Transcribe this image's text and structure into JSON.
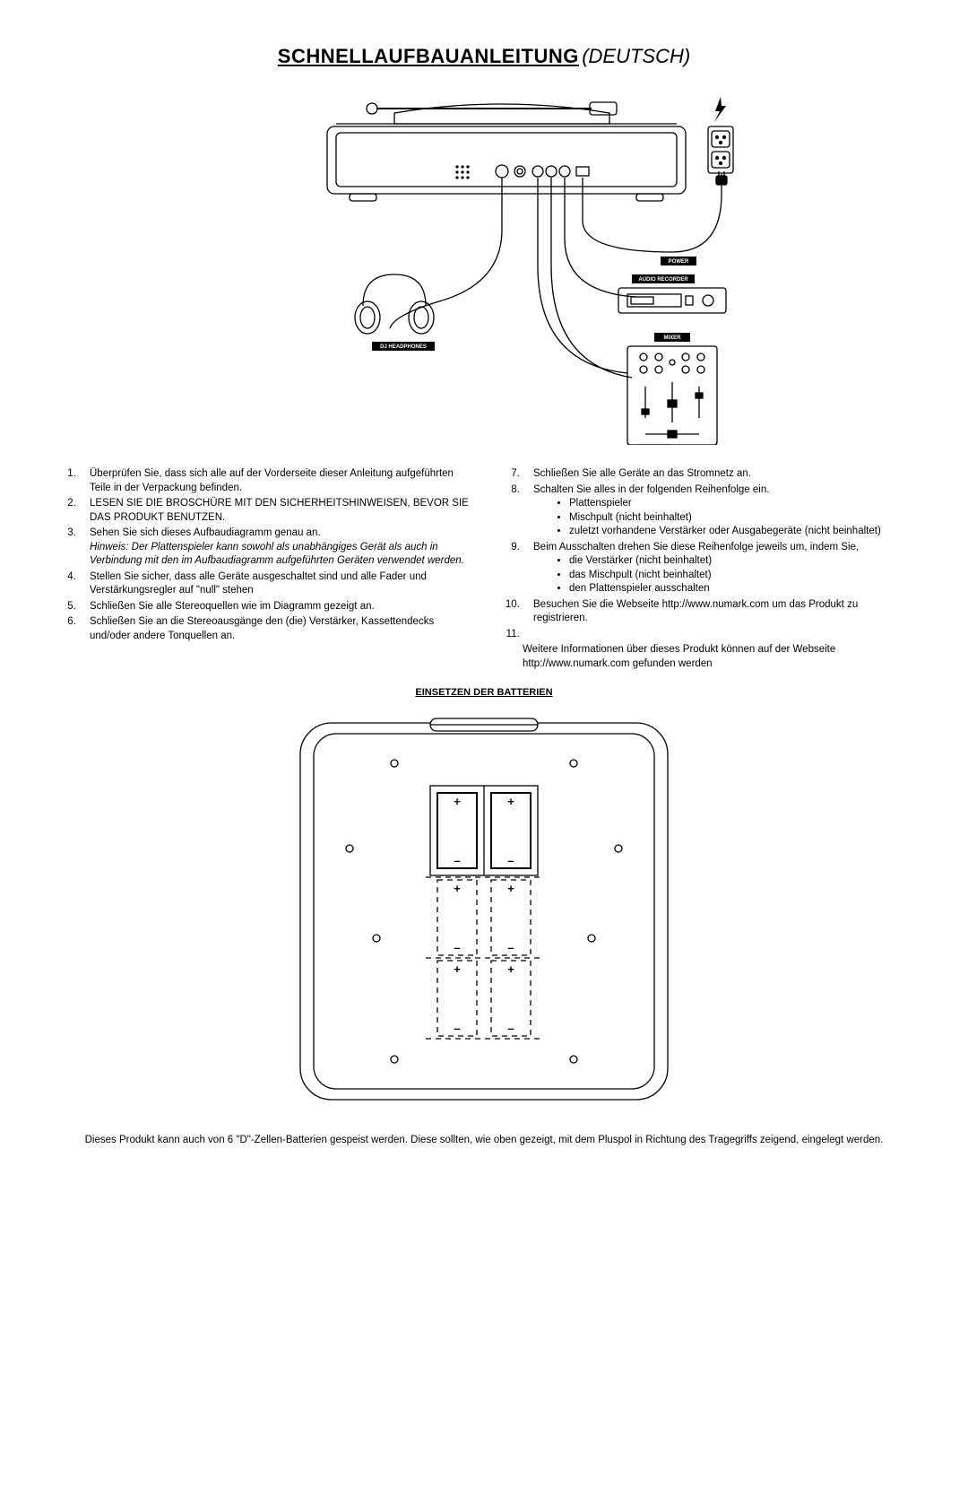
{
  "title": {
    "main": "SCHNELLAUFBAUANLEITUNG",
    "lang": "(DEUTSCH)"
  },
  "diagram_labels": {
    "power": "POWER",
    "audio_recorder": "AUDIO RECORDER",
    "mixer": "MIXER",
    "dj_headphones": "DJ HEADPHONES"
  },
  "left_list": [
    {
      "n": "1.",
      "text": "Überprüfen Sie, dass sich alle auf der Vorderseite dieser Anleitung aufgeführten Teile in der Verpackung befinden."
    },
    {
      "n": "2.",
      "text": "LESEN SIE DIE BROSCHÜRE MIT DEN SICHERHEITSHINWEISEN, BEVOR SIE DAS PRODUKT BENUTZEN."
    },
    {
      "n": "3.",
      "text": "Sehen Sie sich dieses Aufbaudiagramm genau an.",
      "extra_italic": "Hinweis: Der Plattenspieler kann sowohl als unabhängiges Gerät als auch in Verbindung mit den im Aufbaudiagramm aufgeführten Geräten verwendet werden."
    },
    {
      "n": "4.",
      "text": "Stellen Sie sicher, dass alle Geräte ausgeschaltet sind und alle Fader und Verstärkungsregler auf \"null\" stehen"
    },
    {
      "n": "5.",
      "text": "Schließen Sie alle Stereoquellen wie im Diagramm gezeigt an."
    },
    {
      "n": "6.",
      "text": "Schließen Sie an die Stereoausgänge den (die) Verstärker, Kassettendecks und/oder andere Tonquellen an."
    }
  ],
  "right_list": [
    {
      "n": "7.",
      "text": "Schließen Sie alle Geräte an das Stromnetz an."
    },
    {
      "n": "8.",
      "text": "Schalten Sie alles in der folgenden Reihenfolge ein.",
      "bullets": [
        "Plattenspieler",
        "Mischpult (nicht beinhaltet)",
        "zuletzt vorhandene Verstärker oder Ausgabegeräte (nicht beinhaltet)"
      ]
    },
    {
      "n": "9.",
      "text": "Beim Ausschalten drehen Sie diese Reihenfolge jeweils um, indem Sie,",
      "bullets": [
        "die Verstärker (nicht beinhaltet)",
        "das Mischpult (nicht beinhaltet)",
        "den Plattenspieler ausschalten"
      ]
    },
    {
      "n": "10.",
      "text": "Besuchen Sie die Webseite http://www.numark.com um das Produkt zu registrieren."
    },
    {
      "n": "11.",
      "text": ""
    }
  ],
  "right_tail": "Weitere Informationen über dieses Produkt können auf der Webseite http://www.numark.com gefunden werden",
  "battery_heading": "EINSETZEN DER BATTERIEN",
  "battery_symbols": {
    "plus": "+",
    "minus": "–"
  },
  "footnote": "Dieses Produkt kann auch von 6 \"D\"-Zellen-Batterien gespeist werden.  Diese sollten, wie oben gezeigt, mit dem Pluspol in Richtung des Tragegriffs zeigend, eingelegt werden.",
  "colors": {
    "stroke": "#000000",
    "bg": "#ffffff",
    "label_bg": "#000000",
    "label_fg": "#ffffff"
  }
}
